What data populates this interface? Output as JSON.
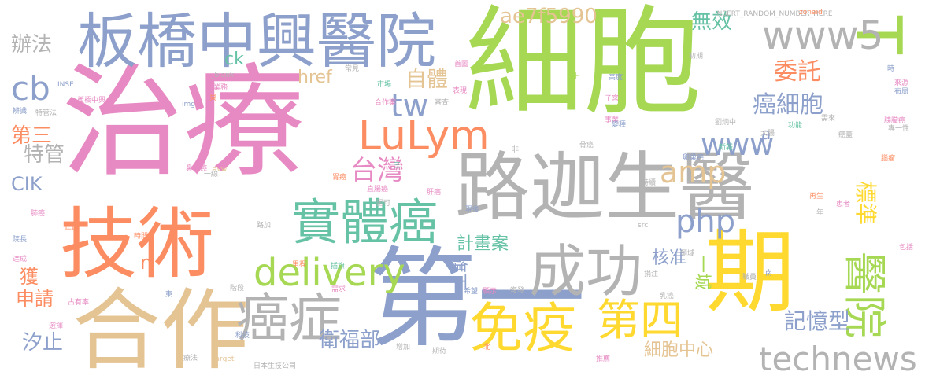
{
  "palette": {
    "pink": "#e78ac3",
    "green": "#a6d854",
    "orange": "#fc8d62",
    "blue": "#8da0cb",
    "teal": "#66c2a5",
    "yellow": "#ffd92f",
    "tan": "#e5c494",
    "gray": "#b3b3b3"
  },
  "words": [
    {
      "text": "細胞",
      "color": "green"
    },
    {
      "text": "治療",
      "color": "pink"
    },
    {
      "text": "路迦生醫",
      "color": "gray"
    },
    {
      "text": "技術",
      "color": "orange"
    },
    {
      "text": "第一",
      "color": "blue"
    },
    {
      "text": "期",
      "color": "yellow"
    },
    {
      "text": "合作",
      "color": "tan"
    },
    {
      "text": "板橋中興醫院",
      "color": "blue"
    },
    {
      "text": "成功",
      "color": "gray"
    },
    {
      "text": "免疫",
      "color": "yellow"
    },
    {
      "text": "癌症",
      "color": "gray"
    },
    {
      "text": "T",
      "color": "green"
    },
    {
      "text": "www5",
      "color": "gray"
    },
    {
      "text": "實體癌",
      "color": "teal"
    },
    {
      "text": "第四",
      "color": "yellow"
    },
    {
      "text": "醫院",
      "color": "green"
    },
    {
      "text": "LuLym",
      "color": "orange"
    },
    {
      "text": "technews",
      "color": "gray"
    },
    {
      "text": "delivery",
      "color": "green"
    },
    {
      "text": "www",
      "color": "blue"
    },
    {
      "text": "amp",
      "color": "tan"
    },
    {
      "text": "php",
      "color": "blue"
    },
    {
      "text": "cb",
      "color": "blue"
    },
    {
      "text": "tw",
      "color": "blue"
    },
    {
      "text": "台灣",
      "color": "pink"
    },
    {
      "text": "癌細胞",
      "color": "blue"
    },
    {
      "text": "自體",
      "color": "tan"
    },
    {
      "text": "記憶型",
      "color": "blue"
    },
    {
      "text": "衛福部",
      "color": "blue"
    },
    {
      "text": "ae7f5990",
      "color": "tan"
    },
    {
      "text": "委託",
      "color": "orange"
    },
    {
      "text": "無效",
      "color": "teal"
    },
    {
      "text": "標準",
      "color": "yellow"
    },
    {
      "text": "細胞中心",
      "color": "tan"
    },
    {
      "text": "汐止",
      "color": "blue"
    },
    {
      "text": "第三",
      "color": "orange"
    },
    {
      "text": "特管",
      "color": "gray"
    },
    {
      "text": "辦法",
      "color": "gray"
    },
    {
      "text": "CIK",
      "color": "blue"
    },
    {
      "text": "申請",
      "color": "orange"
    },
    {
      "text": "計畫案",
      "color": "teal"
    },
    {
      "text": "旗下",
      "color": "blue"
    },
    {
      "text": "href",
      "color": "tan"
    },
    {
      "text": "核准",
      "color": "blue"
    },
    {
      "text": "一城",
      "color": "green"
    },
    {
      "text": "ck",
      "color": "teal"
    },
    {
      "text": "獲",
      "color": "orange"
    },
    {
      "text": "n",
      "color": "orange"
    },
    {
      "text": "a",
      "color": "blue"
    },
    {
      "text": "INSERT_RANDOM_NUMBER_HERE",
      "color": "gray"
    },
    {
      "text": "zoneid",
      "color": "orange"
    },
    {
      "text": "初期",
      "color": "gray"
    },
    {
      "text": "首圖",
      "color": "pink"
    },
    {
      "text": "_blank",
      "color": "gray"
    },
    {
      "text": "常見",
      "color": "gray"
    },
    {
      "text": "高度",
      "color": "blue"
    },
    {
      "text": "表現",
      "color": "pink"
    },
    {
      "text": "市場",
      "color": "teal"
    },
    {
      "text": "業務",
      "color": "pink"
    },
    {
      "text": "板橋中興",
      "color": "pink"
    },
    {
      "text": "img",
      "color": "blue"
    },
    {
      "text": "合作案",
      "color": "pink"
    },
    {
      "text": "審查",
      "color": "gray"
    },
    {
      "text": "特管法",
      "color": "gray"
    },
    {
      "text": "辨識",
      "color": "blue"
    },
    {
      "text": "INSE",
      "color": "blue"
    },
    {
      "text": "子宮",
      "color": "pink"
    },
    {
      "text": "事業",
      "color": "pink"
    },
    {
      "text": "劉炳中",
      "color": "gray"
    },
    {
      "text": "需來",
      "color": "gray"
    },
    {
      "text": "功能",
      "color": "teal"
    },
    {
      "text": "大腸",
      "color": "gray"
    },
    {
      "text": "新報",
      "color": "teal"
    },
    {
      "text": "腦瘤",
      "color": "orange"
    },
    {
      "text": "鼻咽癌",
      "color": "pink"
    },
    {
      "text": "一線",
      "color": "gray"
    },
    {
      "text": "三",
      "color": "teal"
    },
    {
      "text": "胃癌",
      "color": "orange"
    },
    {
      "text": "肝癌",
      "color": "pink"
    },
    {
      "text": "直腸癌",
      "color": "pink"
    },
    {
      "text": "胰臟癌",
      "color": "pink"
    },
    {
      "text": "骨癌",
      "color": "gray"
    },
    {
      "text": "卵巢癌",
      "color": "blue"
    },
    {
      "text": "再生",
      "color": "orange"
    },
    {
      "text": "專一性",
      "color": "gray"
    },
    {
      "text": "來源",
      "color": "pink"
    },
    {
      "text": "布局",
      "color": "blue"
    },
    {
      "text": "持續",
      "color": "gray"
    },
    {
      "text": "困可",
      "color": "gray"
    },
    {
      "text": "路加",
      "color": "gray"
    },
    {
      "text": "非",
      "color": "gray"
    },
    {
      "text": "avw",
      "color": "tan"
    },
    {
      "text": "院長",
      "color": "blue"
    },
    {
      "text": "時間",
      "color": "orange"
    },
    {
      "text": "正面",
      "color": "orange"
    },
    {
      "text": "肺癌",
      "color": "pink"
    },
    {
      "text": "達成",
      "color": "pink"
    },
    {
      "text": "占有率",
      "color": "pink"
    },
    {
      "text": "選擇",
      "color": "pink"
    },
    {
      "text": "階段",
      "color": "gray"
    },
    {
      "text": "里程",
      "color": "orange"
    },
    {
      "text": "需求",
      "color": "pink"
    },
    {
      "text": "希望",
      "color": "blue"
    },
    {
      "text": "顯示",
      "color": "pink"
    },
    {
      "text": "復發",
      "color": "gray"
    },
    {
      "text": "乳癌",
      "color": "gray"
    },
    {
      "text": "src",
      "color": "gray"
    },
    {
      "text": "療法",
      "color": "gray"
    },
    {
      "text": "target",
      "color": "tan"
    },
    {
      "text": "日本生技公司",
      "color": "gray"
    },
    {
      "text": "增加",
      "color": "gray"
    },
    {
      "text": "期待",
      "color": "gray"
    },
    {
      "text": "推薦",
      "color": "pink"
    },
    {
      "text": "科技",
      "color": "blue"
    },
    {
      "text": "領域",
      "color": "gray"
    },
    {
      "text": "南",
      "color": "blue"
    },
    {
      "text": "包括",
      "color": "pink"
    },
    {
      "text": "年",
      "color": "gray"
    },
    {
      "text": "患者",
      "color": "pink"
    },
    {
      "text": "北",
      "color": "orange"
    },
    {
      "text": "插旗",
      "color": "teal"
    },
    {
      "text": "捐注",
      "color": "gray"
    },
    {
      "text": "職員",
      "color": "gray"
    },
    {
      "text": "東",
      "color": "blue"
    },
    {
      "text": "時",
      "color": "blue"
    },
    {
      "text": "變種",
      "color": "blue"
    },
    {
      "text": "癌蓋",
      "color": "gray"
    },
    {
      "text": "貝",
      "color": "orange"
    },
    {
      "text": "現後",
      "color": "blue"
    },
    {
      "text": "十",
      "color": "green"
    }
  ]
}
